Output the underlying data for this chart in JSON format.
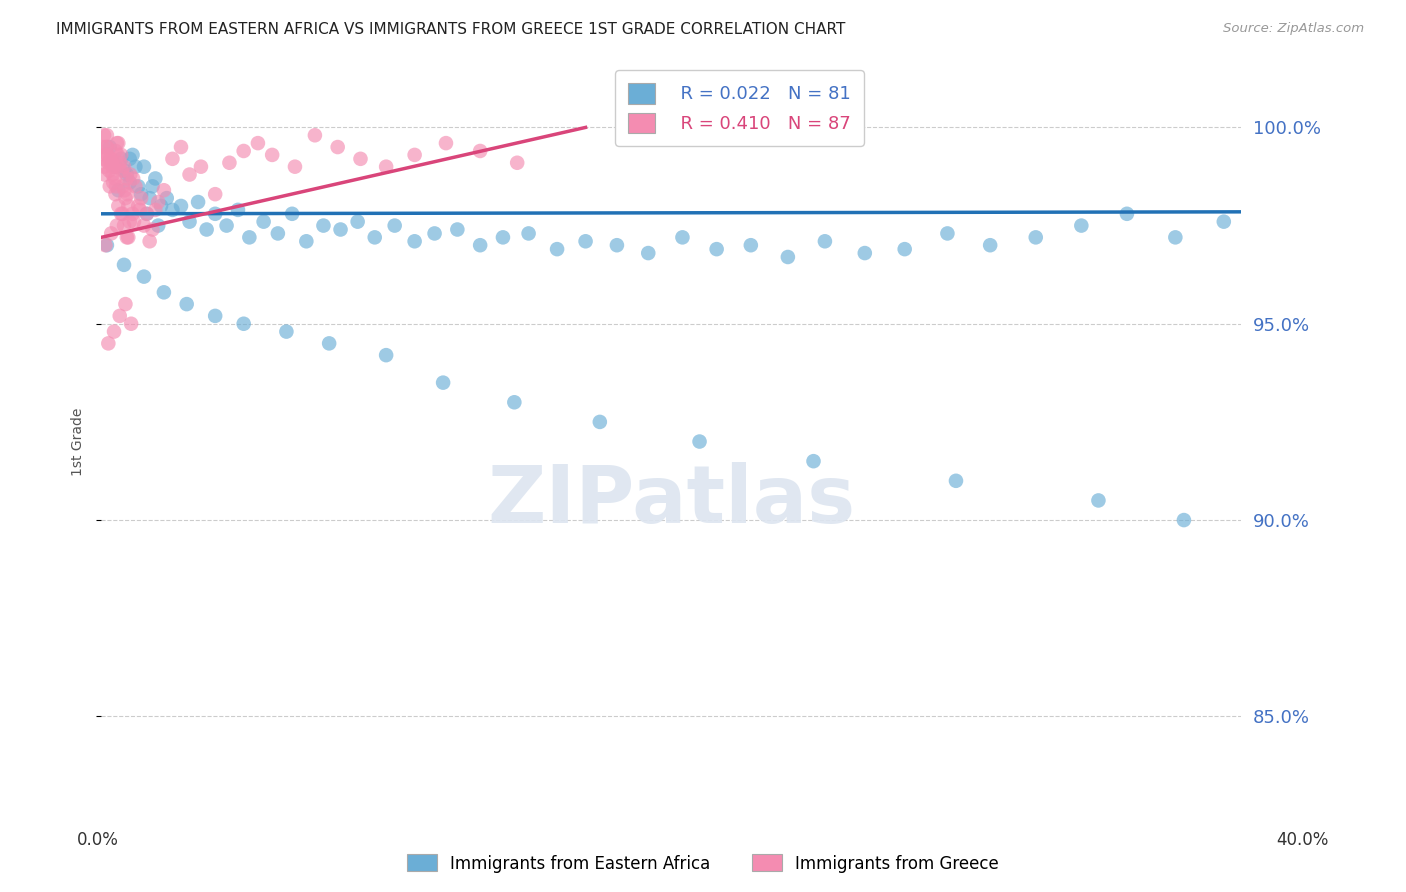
{
  "title": "IMMIGRANTS FROM EASTERN AFRICA VS IMMIGRANTS FROM GREECE 1ST GRADE CORRELATION CHART",
  "source": "Source: ZipAtlas.com",
  "ylabel": "1st Grade",
  "xlim": [
    0.0,
    40.0
  ],
  "ylim": [
    82.5,
    101.5
  ],
  "yticks": [
    85.0,
    90.0,
    95.0,
    100.0
  ],
  "legend_r_blue": "R = 0.022",
  "legend_n_blue": "N = 81",
  "legend_r_pink": "R = 0.410",
  "legend_n_pink": "N = 87",
  "legend_label_blue": "Immigrants from Eastern Africa",
  "legend_label_pink": "Immigrants from Greece",
  "blue_color": "#6baed6",
  "pink_color": "#f48cb1",
  "trend_blue_color": "#2171b5",
  "trend_pink_color": "#d9457a",
  "blue_trend_y0": 97.8,
  "blue_trend_y1": 97.85,
  "pink_trend_x0": 0.0,
  "pink_trend_y0": 97.2,
  "pink_trend_x1": 17.0,
  "pink_trend_y1": 100.0,
  "blue_dots_x": [
    0.3,
    0.5,
    0.7,
    0.9,
    1.1,
    1.3,
    1.5,
    1.7,
    1.9,
    2.1,
    0.4,
    0.6,
    0.8,
    1.0,
    1.2,
    1.4,
    1.6,
    1.8,
    2.0,
    2.3,
    2.5,
    2.8,
    3.1,
    3.4,
    3.7,
    4.0,
    4.4,
    4.8,
    5.2,
    5.7,
    6.2,
    6.7,
    7.2,
    7.8,
    8.4,
    9.0,
    9.6,
    10.3,
    11.0,
    11.7,
    12.5,
    13.3,
    14.1,
    15.0,
    16.0,
    17.0,
    18.1,
    19.2,
    20.4,
    21.6,
    22.8,
    24.1,
    25.4,
    26.8,
    28.2,
    29.7,
    31.2,
    32.8,
    34.4,
    36.0,
    37.7,
    39.4,
    0.2,
    0.8,
    1.5,
    2.2,
    3.0,
    4.0,
    5.0,
    6.5,
    8.0,
    10.0,
    12.0,
    14.5,
    17.5,
    21.0,
    25.0,
    30.0,
    35.0,
    38.0,
    1.0
  ],
  "blue_dots_y": [
    99.5,
    99.0,
    99.2,
    98.8,
    99.3,
    98.5,
    99.0,
    98.2,
    98.7,
    98.0,
    99.1,
    98.4,
    98.9,
    98.6,
    99.0,
    98.3,
    97.8,
    98.5,
    97.5,
    98.2,
    97.9,
    98.0,
    97.6,
    98.1,
    97.4,
    97.8,
    97.5,
    97.9,
    97.2,
    97.6,
    97.3,
    97.8,
    97.1,
    97.5,
    97.4,
    97.6,
    97.2,
    97.5,
    97.1,
    97.3,
    97.4,
    97.0,
    97.2,
    97.3,
    96.9,
    97.1,
    97.0,
    96.8,
    97.2,
    96.9,
    97.0,
    96.7,
    97.1,
    96.8,
    96.9,
    97.3,
    97.0,
    97.2,
    97.5,
    97.8,
    97.2,
    97.6,
    97.0,
    96.5,
    96.2,
    95.8,
    95.5,
    95.2,
    95.0,
    94.8,
    94.5,
    94.2,
    93.5,
    93.0,
    92.5,
    92.0,
    91.5,
    91.0,
    90.5,
    90.0,
    99.2
  ],
  "pink_dots_x": [
    0.05,
    0.1,
    0.15,
    0.2,
    0.25,
    0.3,
    0.35,
    0.4,
    0.45,
    0.5,
    0.55,
    0.6,
    0.65,
    0.7,
    0.75,
    0.8,
    0.85,
    0.9,
    0.95,
    1.0,
    0.1,
    0.2,
    0.3,
    0.4,
    0.5,
    0.6,
    0.7,
    0.8,
    0.9,
    1.1,
    1.2,
    1.3,
    1.4,
    1.5,
    1.6,
    1.7,
    1.8,
    1.9,
    2.0,
    2.2,
    2.5,
    2.8,
    3.1,
    3.5,
    4.0,
    4.5,
    5.0,
    5.5,
    6.0,
    6.8,
    7.5,
    8.3,
    9.1,
    10.0,
    11.0,
    12.1,
    13.3,
    14.6,
    0.15,
    0.35,
    0.55,
    0.75,
    0.95,
    1.15,
    1.35,
    0.25,
    0.45,
    0.65,
    0.85,
    1.05,
    0.12,
    0.32,
    0.52,
    0.72,
    0.92,
    1.12,
    0.22,
    0.42,
    0.62,
    0.82,
    1.02,
    0.08,
    0.18,
    0.28,
    0.38,
    0.48,
    0.58
  ],
  "pink_dots_y": [
    99.5,
    99.0,
    99.3,
    99.8,
    99.1,
    98.5,
    99.2,
    98.8,
    99.0,
    98.3,
    99.6,
    98.0,
    99.1,
    97.8,
    98.5,
    97.5,
    98.2,
    97.2,
    98.0,
    97.6,
    99.8,
    99.5,
    99.2,
    99.0,
    99.4,
    99.6,
    99.3,
    99.0,
    98.7,
    97.8,
    98.5,
    98.0,
    98.2,
    97.5,
    97.8,
    97.1,
    97.4,
    97.9,
    98.1,
    98.4,
    99.2,
    99.5,
    98.8,
    99.0,
    98.3,
    99.1,
    99.4,
    99.6,
    99.3,
    99.0,
    99.8,
    99.5,
    99.2,
    99.0,
    99.3,
    99.6,
    99.4,
    99.1,
    97.0,
    97.3,
    97.5,
    97.8,
    97.2,
    97.6,
    97.9,
    94.5,
    94.8,
    95.2,
    95.5,
    95.0,
    98.8,
    99.1,
    98.5,
    98.9,
    98.3,
    98.7,
    99.3,
    98.6,
    99.0,
    98.4,
    98.8,
    99.2,
    99.5,
    98.9,
    99.1,
    98.7,
    99.3
  ]
}
